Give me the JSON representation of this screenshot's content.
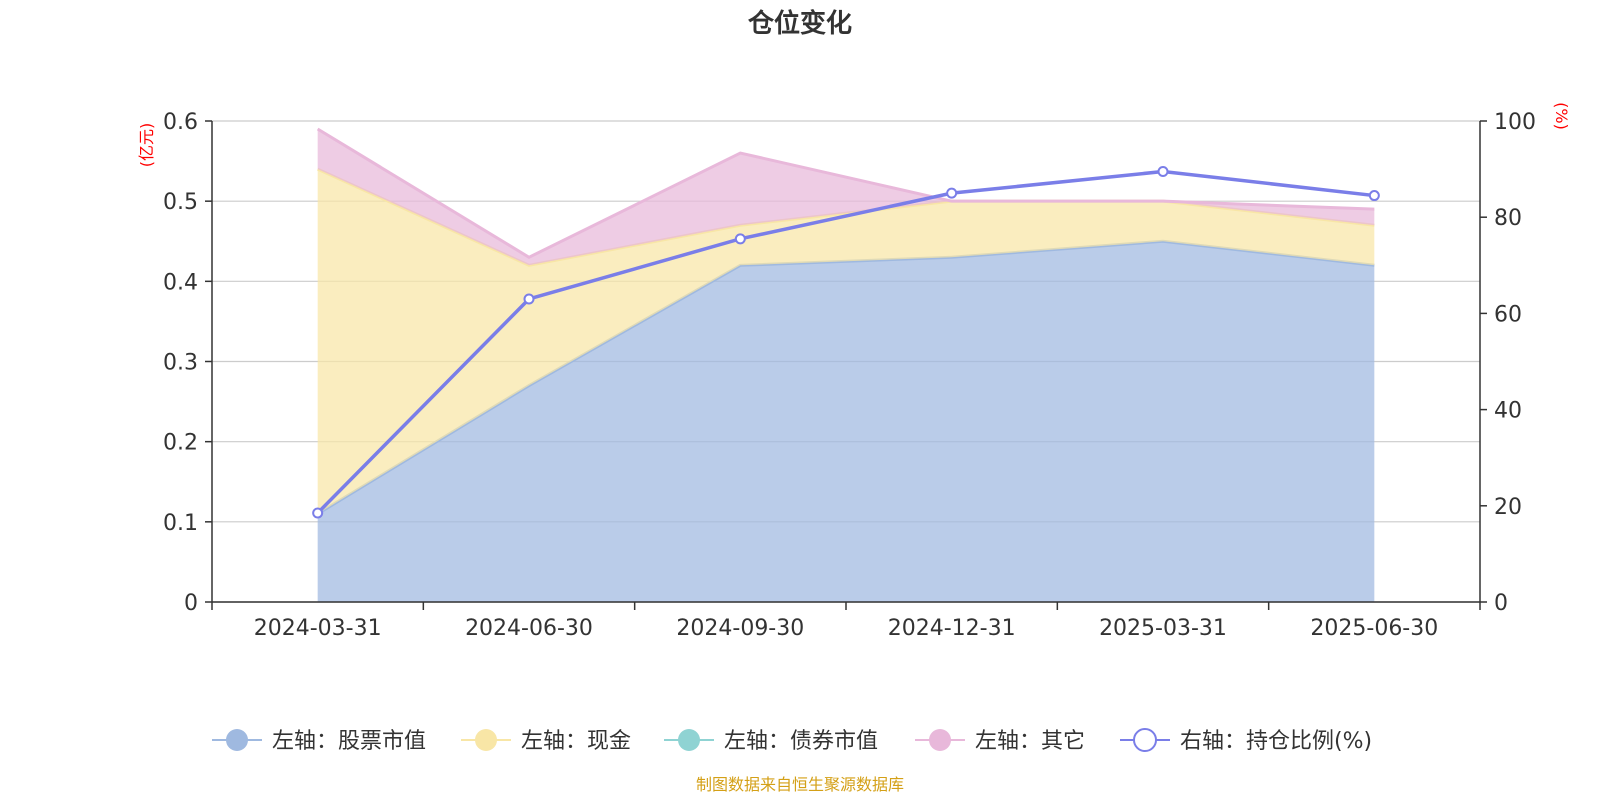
{
  "chart_data": {
    "type": "area",
    "title": "仓位变化",
    "left_unit": "(亿元)",
    "right_unit": "(%)",
    "categories": [
      "2024-03-31",
      "2024-06-30",
      "2024-09-30",
      "2024-12-31",
      "2025-03-31",
      "2025-06-30"
    ],
    "left_axis": {
      "min": 0,
      "max": 0.6,
      "ticks": [
        "0",
        "0.1",
        "0.2",
        "0.3",
        "0.4",
        "0.5",
        "0.6"
      ]
    },
    "right_axis": {
      "min": 0,
      "max": 100,
      "ticks": [
        "0",
        "20",
        "40",
        "60",
        "80",
        "100"
      ]
    },
    "stacked": true,
    "series": [
      {
        "name": "左轴：股票市值",
        "axis": "left",
        "kind": "area",
        "color": "#9fb9e0",
        "values": [
          0.11,
          0.27,
          0.42,
          0.43,
          0.45,
          0.42
        ]
      },
      {
        "name": "左轴：现金",
        "axis": "left",
        "kind": "area",
        "color": "#f8e6a6",
        "values": [
          0.43,
          0.15,
          0.05,
          0.07,
          0.05,
          0.05
        ]
      },
      {
        "name": "左轴：债券市值",
        "axis": "left",
        "kind": "area",
        "color": "#8fd3d3",
        "values": [
          0,
          0,
          0,
          0,
          0,
          0
        ]
      },
      {
        "name": "左轴：其它",
        "axis": "left",
        "kind": "area",
        "color": "#e8b8da",
        "values": [
          0.05,
          0.01,
          0.09,
          0.0,
          0.0,
          0.02
        ]
      },
      {
        "name": "右轴：持仓比例(%)",
        "axis": "right",
        "kind": "line",
        "color": "#7a7ee8",
        "values": [
          18.5,
          63,
          75.5,
          85,
          89.5,
          84.5
        ]
      }
    ],
    "grid": true,
    "legend_position": "bottom"
  },
  "source_note": "制图数据来自恒生聚源数据库"
}
